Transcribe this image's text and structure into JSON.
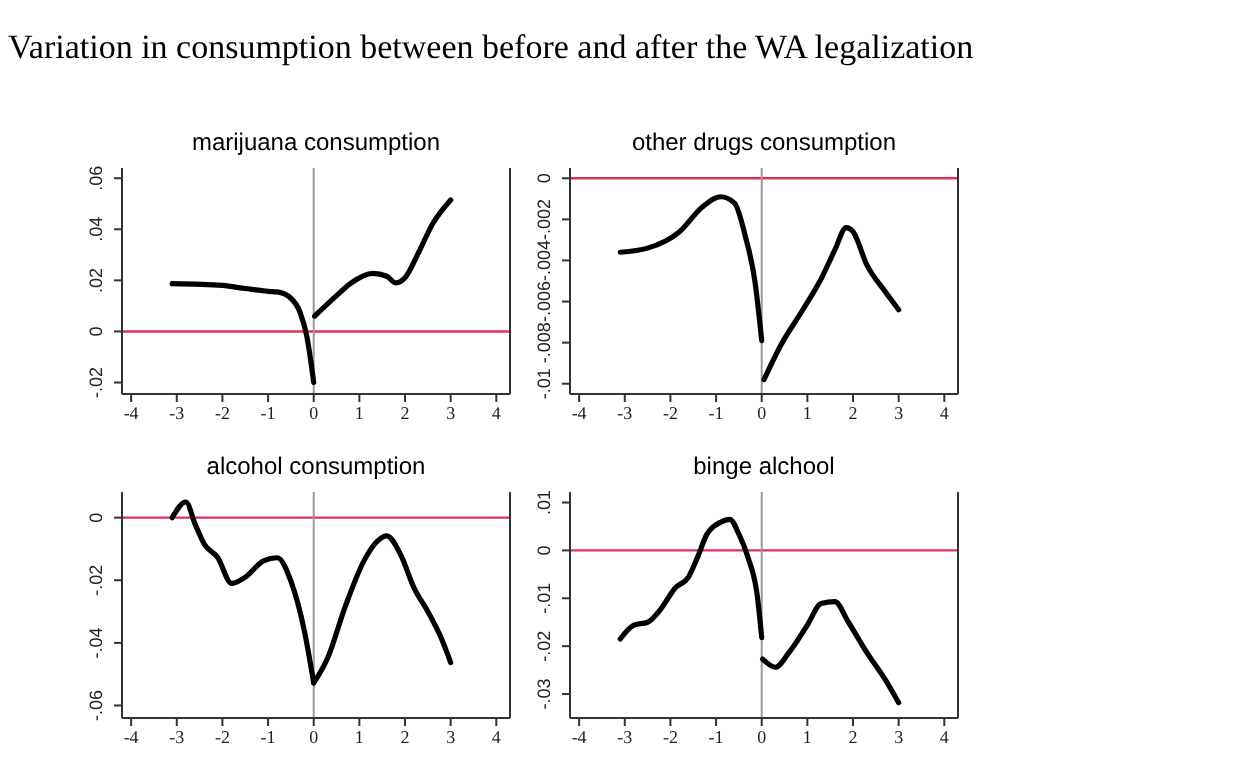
{
  "chart_data": [
    {
      "type": "line",
      "title": "marijuana consumption",
      "annotations": [
        "Variation in consumption between before and after the WA legalization"
      ],
      "xlim": [
        -4.2,
        4.3
      ],
      "xticks": [
        -4,
        -3,
        -2,
        -1,
        0,
        1,
        2,
        3,
        4
      ],
      "ylim": [
        -0.0245,
        0.064
      ],
      "yticks": [
        {
          "value": -0.02,
          "label": "-.02"
        },
        {
          "value": 0,
          "label": "0"
        },
        {
          "value": 0.02,
          "label": ".02"
        },
        {
          "value": 0.04,
          "label": ".04"
        },
        {
          "value": 0.06,
          "label": ".06"
        }
      ],
      "marker": "none",
      "line_style": "solid",
      "grid": false,
      "series": [
        {
          "color": "#000000",
          "x": [
            -3.1,
            -2,
            -1.5,
            -1,
            -0.8,
            -0.5,
            -0.3,
            -0.15,
            0
          ],
          "values": [
            0.0187,
            0.018,
            0.0168,
            0.0157,
            0.0155,
            0.013,
            0.0075,
            -0.002,
            -0.02
          ]
        },
        {
          "color": "#000000",
          "x": [
            0.02,
            0.5,
            0.8,
            1.3,
            1.6,
            1.8,
            2,
            2.3,
            2.6,
            3
          ],
          "values": [
            0.006,
            0.014,
            0.0187,
            0.0227,
            0.0216,
            0.019,
            0.021,
            0.031,
            0.042,
            0.0515
          ]
        }
      ],
      "ref_lines": [
        {
          "axis": "y",
          "value": 0,
          "color": "#e0305a"
        },
        {
          "axis": "x",
          "value": 0,
          "color": "#999999"
        }
      ]
    },
    {
      "type": "line",
      "title": "other drugs consumption",
      "xlim": [
        -4.2,
        4.3
      ],
      "xticks": [
        -4,
        -3,
        -2,
        -1,
        0,
        1,
        2,
        3,
        4
      ],
      "ylim": [
        -0.0105,
        0.0005
      ],
      "yticks": [
        {
          "value": -0.01,
          "label": "-.01"
        },
        {
          "value": -0.008,
          "label": "-.008"
        },
        {
          "value": -0.006,
          "label": "-.006"
        },
        {
          "value": -0.004,
          "label": "-.004"
        },
        {
          "value": -0.002,
          "label": "-.002"
        },
        {
          "value": 0,
          "label": "0"
        }
      ],
      "marker": "none",
      "line_style": "solid",
      "grid": false,
      "series": [
        {
          "color": "#000000",
          "x": [
            -3.1,
            -2.5,
            -1.8,
            -1.3,
            -0.9,
            -0.6,
            -0.35,
            -0.15,
            0
          ],
          "values": [
            -0.0036,
            -0.0034,
            -0.0026,
            -0.0014,
            -0.0009,
            -0.0012,
            -0.0029,
            -0.005,
            -0.0079
          ]
        },
        {
          "color": "#000000",
          "x": [
            0.05,
            0.4,
            0.9,
            1.3,
            1.6,
            1.85,
            2,
            2.3,
            2.7,
            3
          ],
          "values": [
            -0.0098,
            -0.0082,
            -0.0064,
            -0.0049,
            -0.0035,
            -0.0024,
            -0.0026,
            -0.0042,
            -0.0055,
            -0.0064
          ]
        }
      ],
      "ref_lines": [
        {
          "axis": "y",
          "value": 0,
          "color": "#e0305a"
        },
        {
          "axis": "x",
          "value": 0,
          "color": "#999999"
        }
      ]
    },
    {
      "type": "line",
      "title": "alcohol consumption",
      "xlim": [
        -4.2,
        4.3
      ],
      "xticks": [
        -4,
        -3,
        -2,
        -1,
        0,
        1,
        2,
        3,
        4
      ],
      "ylim": [
        -0.064,
        0.0082
      ],
      "yticks": [
        {
          "value": -0.06,
          "label": "-.06"
        },
        {
          "value": -0.04,
          "label": "-.04"
        },
        {
          "value": -0.02,
          "label": "-.02"
        },
        {
          "value": 0,
          "label": "0"
        }
      ],
      "marker": "none",
      "line_style": "solid",
      "grid": false,
      "series": [
        {
          "color": "#000000",
          "x": [
            -3.1,
            -2.8,
            -2.6,
            -2.4,
            -2.1,
            -1.8,
            -1.5,
            -1.1,
            -0.8,
            -0.5,
            -0.2,
            0
          ],
          "values": [
            0,
            0.005,
            -0.002,
            -0.0084,
            -0.0128,
            -0.021,
            -0.019,
            -0.0138,
            -0.0128,
            -0.0203,
            -0.0365,
            -0.0528
          ]
        },
        {
          "color": "#000000",
          "x": [
            0,
            0.3,
            0.7,
            1.1,
            1.4,
            1.6,
            1.9,
            2.2,
            2.5,
            2.8,
            3
          ],
          "values": [
            -0.0528,
            -0.045,
            -0.028,
            -0.0138,
            -0.0074,
            -0.0058,
            -0.0117,
            -0.0225,
            -0.03,
            -0.0387,
            -0.0463
          ]
        }
      ],
      "ref_lines": [
        {
          "axis": "y",
          "value": 0,
          "color": "#e0305a"
        },
        {
          "axis": "x",
          "value": 0,
          "color": "#999999"
        }
      ]
    },
    {
      "type": "line",
      "title": "binge alchool",
      "xlim": [
        -4.2,
        4.3
      ],
      "xticks": [
        -4,
        -3,
        -2,
        -1,
        0,
        1,
        2,
        3,
        4
      ],
      "ylim": [
        -0.035,
        0.0122
      ],
      "yticks": [
        {
          "value": -0.03,
          "label": "-.03"
        },
        {
          "value": -0.02,
          "label": "-.02"
        },
        {
          "value": -0.01,
          "label": "-.01"
        },
        {
          "value": 0,
          "label": "0"
        },
        {
          "value": 0.01,
          "label": ".01"
        }
      ],
      "marker": "none",
      "line_style": "solid",
      "grid": false,
      "series": [
        {
          "color": "#000000",
          "x": [
            -3.1,
            -2.8,
            -2.5,
            -2.2,
            -1.9,
            -1.6,
            -1.4,
            -1.2,
            -0.9,
            -0.7,
            -0.5,
            -0.3,
            -0.1,
            0
          ],
          "values": [
            -0.0185,
            -0.0156,
            -0.015,
            -0.0121,
            -0.0079,
            -0.0055,
            -0.0013,
            0.0034,
            0.0059,
            0.0065,
            0.0034,
            -0.0015,
            -0.0093,
            -0.0182
          ]
        },
        {
          "color": "#000000",
          "x": [
            0.02,
            0.3,
            0.6,
            1,
            1.3,
            1.6,
            1.9,
            2.3,
            2.7,
            3
          ],
          "values": [
            -0.0227,
            -0.0244,
            -0.0213,
            -0.0156,
            -0.0111,
            -0.0107,
            -0.015,
            -0.0213,
            -0.0269,
            -0.0318
          ]
        }
      ],
      "ref_lines": [
        {
          "axis": "y",
          "value": 0,
          "color": "#e0305a"
        },
        {
          "axis": "x",
          "value": 0,
          "color": "#999999"
        }
      ]
    }
  ]
}
